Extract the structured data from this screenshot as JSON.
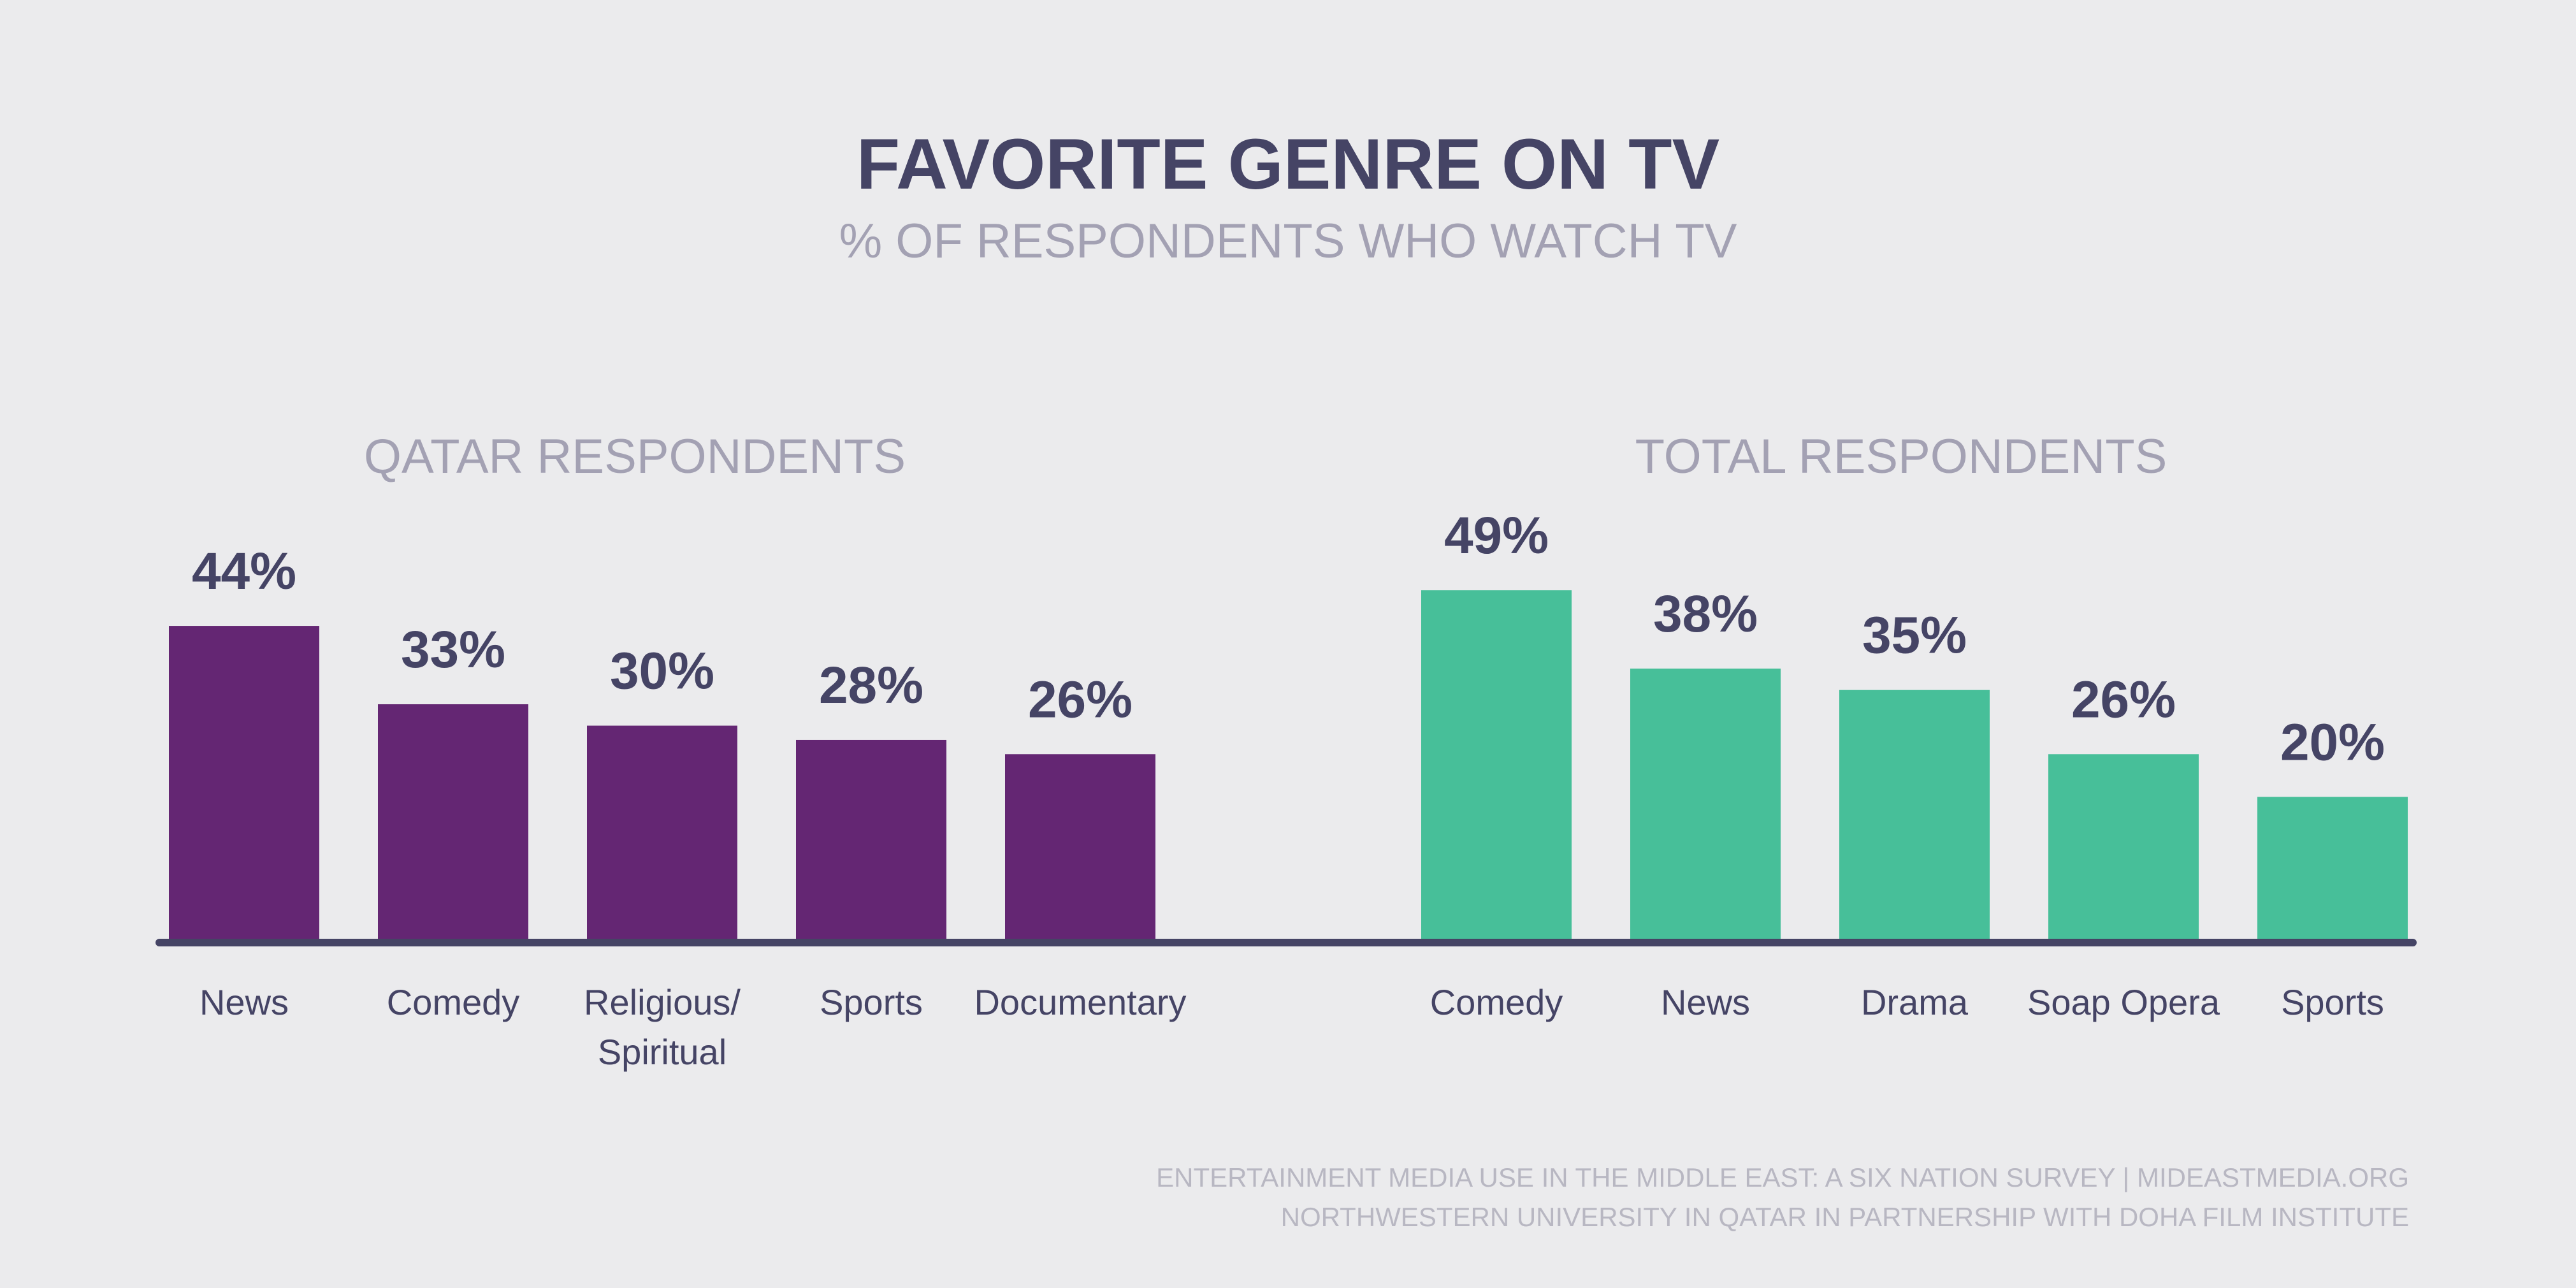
{
  "colors": {
    "background": "#ebebed",
    "qatar_bar": "#642673",
    "total_bar": "#47bf99",
    "baseline": "#454465",
    "text_dark": "#454465",
    "text_light": "#a3a1b3",
    "footer": "#b8b7c2"
  },
  "title": "FAVORITE GENRE ON TV",
  "subtitle": "% OF RESPONDENTS WHO WATCH TV",
  "footer": {
    "line1": "ENTERTAINMENT MEDIA USE IN THE MIDDLE EAST: A SIX NATION SURVEY | MIDEASTMEDIA.ORG",
    "line2": "NORTHWESTERN UNIVERSITY IN QATAR IN PARTNERSHIP WITH DOHA FILM INSTITUTE"
  },
  "chart_data": [
    {
      "type": "bar",
      "title": "QATAR RESPONDENTS",
      "categories": [
        "News",
        "Comedy",
        "Religious/\nSpiritual",
        "Sports",
        "Documentary"
      ],
      "values": [
        44,
        33,
        30,
        28,
        26
      ],
      "value_labels": [
        "44%",
        "33%",
        "30%",
        "28%",
        "26%"
      ],
      "color": "#642673",
      "ylim": [
        0,
        50
      ],
      "grid": false
    },
    {
      "type": "bar",
      "title": "TOTAL RESPONDENTS",
      "categories": [
        "Comedy",
        "News",
        "Drama",
        "Soap Opera",
        "Sports"
      ],
      "values": [
        49,
        38,
        35,
        26,
        20
      ],
      "value_labels": [
        "49%",
        "38%",
        "35%",
        "26%",
        "20%"
      ],
      "color": "#47bf99",
      "ylim": [
        0,
        50
      ],
      "grid": false
    }
  ]
}
